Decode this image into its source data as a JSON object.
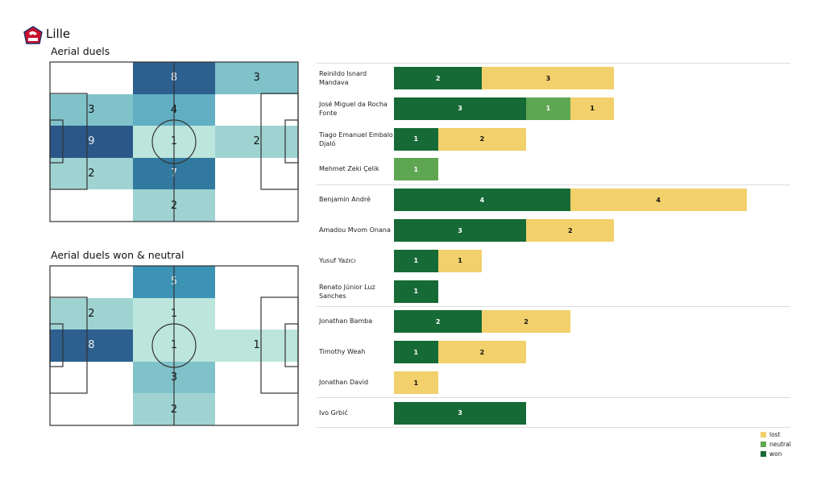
{
  "team": "Lille",
  "colors": {
    "won": "#166a35",
    "neutral": "#5fa653",
    "lost": "#f2d06b"
  },
  "chart_data": [
    {
      "type": "heatmap",
      "title": "Aerial duels",
      "grid": [
        [
          0,
          8,
          3
        ],
        [
          3,
          4,
          0
        ],
        [
          9,
          1,
          2
        ],
        [
          2,
          7,
          0
        ],
        [
          0,
          2,
          0
        ]
      ]
    },
    {
      "type": "heatmap",
      "title": "Aerial duels won & neutral",
      "grid": [
        [
          0,
          5,
          0
        ],
        [
          2,
          1,
          0
        ],
        [
          8,
          1,
          1
        ],
        [
          0,
          3,
          0
        ],
        [
          0,
          2,
          0
        ]
      ]
    },
    {
      "type": "bar",
      "stacked": true,
      "orientation": "horizontal",
      "categories": [
        "Reinildo Isnard Mandava",
        "José Miguel da Rocha Fonte",
        "Tiago Emanuel Embalo Djaló",
        "Mehmet Zeki Çelik",
        "Benjamin André",
        "Amadou Mvom Onana",
        "Yusuf Yazıcı",
        "Renato Júnior Luz Sanches",
        "Jonathan Bamba",
        "Timothy Weah",
        "Jonathan David",
        "Ivo Grbić"
      ],
      "series": [
        {
          "name": "won",
          "values": [
            2,
            3,
            1,
            0,
            4,
            3,
            1,
            1,
            2,
            1,
            0,
            3
          ]
        },
        {
          "name": "neutral",
          "values": [
            0,
            1,
            0,
            1,
            0,
            0,
            0,
            0,
            0,
            0,
            0,
            0
          ]
        },
        {
          "name": "lost",
          "values": [
            3,
            1,
            2,
            0,
            4,
            2,
            1,
            0,
            2,
            2,
            1,
            0
          ]
        }
      ],
      "legend": [
        "lost",
        "neutral",
        "won"
      ],
      "legend_position": "bottom-right"
    }
  ]
}
